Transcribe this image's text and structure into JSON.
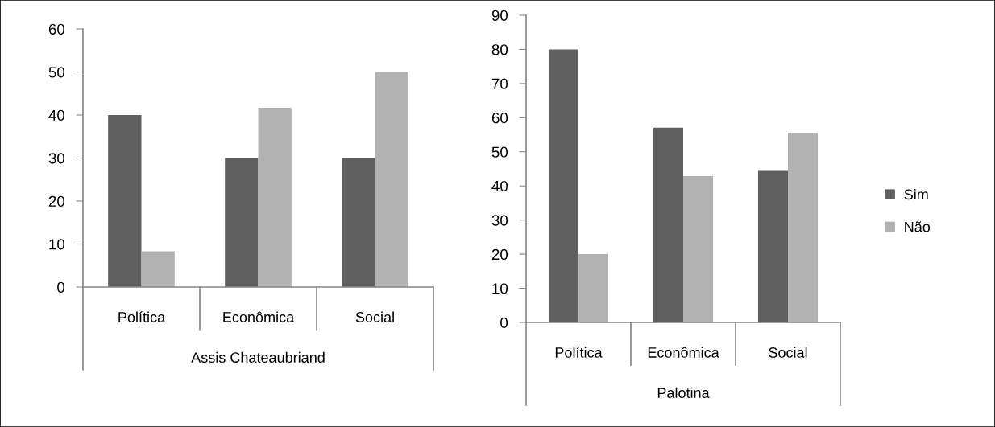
{
  "chart_data": [
    {
      "type": "bar",
      "categories": [
        "Política",
        "Econômica",
        "Social"
      ],
      "xlabel": "Assis Chateaubriand",
      "ylim": [
        0,
        60
      ],
      "yticks": [
        0,
        10,
        20,
        30,
        40,
        50,
        60
      ],
      "grid": false,
      "series": [
        {
          "color": "#606060",
          "values": [
            40,
            30,
            30
          ]
        },
        {
          "color": "#b2b2b2",
          "values": [
            8.3,
            41.7,
            50
          ]
        }
      ]
    },
    {
      "type": "bar",
      "categories": [
        "Política",
        "Econômica",
        "Social"
      ],
      "xlabel": "Palotina",
      "ylim": [
        0,
        90
      ],
      "yticks": [
        0,
        10,
        20,
        30,
        40,
        50,
        60,
        70,
        80,
        90
      ],
      "grid": false,
      "legend": "right",
      "series": [
        {
          "name": "Sim",
          "color": "#606060",
          "values": [
            80,
            57.1,
            44.4
          ]
        },
        {
          "name": "Não",
          "color": "#b2b2b2",
          "values": [
            20,
            42.9,
            55.6
          ]
        }
      ]
    }
  ]
}
